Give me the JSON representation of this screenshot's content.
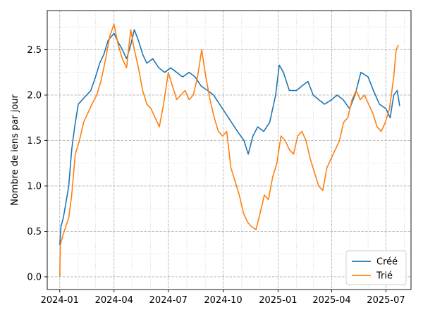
{
  "chart_data": {
    "type": "line",
    "title": "",
    "xlabel": "",
    "ylabel": "Nombre de iens par jour",
    "ylim": [
      -0.14,
      2.93
    ],
    "xlim": [
      "2023-12-11",
      "2025-08-12"
    ],
    "x_ticks": [
      {
        "date": "2024-01-01",
        "label": "2024-01"
      },
      {
        "date": "2024-04-01",
        "label": "2024-04"
      },
      {
        "date": "2024-07-01",
        "label": "2024-07"
      },
      {
        "date": "2024-10-01",
        "label": "2024-10"
      },
      {
        "date": "2025-01-01",
        "label": "2025-01"
      },
      {
        "date": "2025-04-01",
        "label": "2025-04"
      },
      {
        "date": "2025-07-01",
        "label": "2025-07"
      }
    ],
    "y_ticks": [
      {
        "value": 0.0,
        "label": "0.0"
      },
      {
        "value": 0.5,
        "label": "0.5"
      },
      {
        "value": 1.0,
        "label": "1.0"
      },
      {
        "value": 1.5,
        "label": "1.5"
      },
      {
        "value": 2.0,
        "label": "2.0"
      },
      {
        "value": 2.5,
        "label": "2.5"
      }
    ],
    "grid": {
      "major": "dashed",
      "minor": "dotted",
      "minor_x": "monthly"
    },
    "legend_position": "bottom-right",
    "series": [
      {
        "name": "Créé",
        "color": "#1f77b4",
        "points": [
          [
            "2024-01-01",
            0.35
          ],
          [
            "2024-01-03",
            0.55
          ],
          [
            "2024-01-07",
            0.65
          ],
          [
            "2024-01-11",
            0.8
          ],
          [
            "2024-01-16",
            1.0
          ],
          [
            "2024-01-21",
            1.4
          ],
          [
            "2024-01-26",
            1.65
          ],
          [
            "2024-02-01",
            1.9
          ],
          [
            "2024-02-08",
            1.95
          ],
          [
            "2024-02-15",
            2.0
          ],
          [
            "2024-02-22",
            2.05
          ],
          [
            "2024-03-01",
            2.2
          ],
          [
            "2024-03-08",
            2.35
          ],
          [
            "2024-03-15",
            2.45
          ],
          [
            "2024-03-22",
            2.6
          ],
          [
            "2024-04-01",
            2.68
          ],
          [
            "2024-04-08",
            2.58
          ],
          [
            "2024-04-15",
            2.5
          ],
          [
            "2024-04-22",
            2.4
          ],
          [
            "2024-04-29",
            2.55
          ],
          [
            "2024-05-05",
            2.72
          ],
          [
            "2024-05-12",
            2.6
          ],
          [
            "2024-05-19",
            2.45
          ],
          [
            "2024-05-26",
            2.35
          ],
          [
            "2024-06-05",
            2.4
          ],
          [
            "2024-06-15",
            2.3
          ],
          [
            "2024-06-25",
            2.25
          ],
          [
            "2024-07-05",
            2.3
          ],
          [
            "2024-07-15",
            2.25
          ],
          [
            "2024-07-25",
            2.2
          ],
          [
            "2024-08-05",
            2.25
          ],
          [
            "2024-08-15",
            2.2
          ],
          [
            "2024-08-25",
            2.1
          ],
          [
            "2024-09-05",
            2.05
          ],
          [
            "2024-09-15",
            2.0
          ],
          [
            "2024-09-25",
            1.9
          ],
          [
            "2024-10-05",
            1.8
          ],
          [
            "2024-10-15",
            1.7
          ],
          [
            "2024-10-25",
            1.6
          ],
          [
            "2024-11-05",
            1.5
          ],
          [
            "2024-11-12",
            1.35
          ],
          [
            "2024-11-20",
            1.55
          ],
          [
            "2024-11-28",
            1.65
          ],
          [
            "2024-12-08",
            1.6
          ],
          [
            "2024-12-18",
            1.7
          ],
          [
            "2024-12-28",
            2.0
          ],
          [
            "2025-01-03",
            2.33
          ],
          [
            "2025-01-10",
            2.25
          ],
          [
            "2025-01-20",
            2.05
          ],
          [
            "2025-02-01",
            2.05
          ],
          [
            "2025-02-10",
            2.1
          ],
          [
            "2025-02-20",
            2.15
          ],
          [
            "2025-03-01",
            2.0
          ],
          [
            "2025-03-10",
            1.95
          ],
          [
            "2025-03-20",
            1.9
          ],
          [
            "2025-04-01",
            1.95
          ],
          [
            "2025-04-10",
            2.0
          ],
          [
            "2025-04-20",
            1.95
          ],
          [
            "2025-05-01",
            1.85
          ],
          [
            "2025-05-10",
            2.0
          ],
          [
            "2025-05-20",
            2.25
          ],
          [
            "2025-06-01",
            2.2
          ],
          [
            "2025-06-10",
            2.05
          ],
          [
            "2025-06-20",
            1.9
          ],
          [
            "2025-07-01",
            1.85
          ],
          [
            "2025-07-08",
            1.75
          ],
          [
            "2025-07-14",
            2.0
          ],
          [
            "2025-07-20",
            2.05
          ],
          [
            "2025-07-24",
            1.88
          ]
        ]
      },
      {
        "name": "Trié",
        "color": "#ff7f0e",
        "points": [
          [
            "2024-01-01",
            0.0
          ],
          [
            "2024-01-02",
            0.35
          ],
          [
            "2024-01-06",
            0.45
          ],
          [
            "2024-01-11",
            0.55
          ],
          [
            "2024-01-16",
            0.65
          ],
          [
            "2024-01-21",
            0.9
          ],
          [
            "2024-01-27",
            1.35
          ],
          [
            "2024-02-03",
            1.5
          ],
          [
            "2024-02-10",
            1.7
          ],
          [
            "2024-02-17",
            1.8
          ],
          [
            "2024-02-24",
            1.9
          ],
          [
            "2024-03-03",
            2.0
          ],
          [
            "2024-03-10",
            2.15
          ],
          [
            "2024-03-18",
            2.4
          ],
          [
            "2024-03-25",
            2.65
          ],
          [
            "2024-04-01",
            2.78
          ],
          [
            "2024-04-08",
            2.55
          ],
          [
            "2024-04-15",
            2.4
          ],
          [
            "2024-04-22",
            2.3
          ],
          [
            "2024-04-29",
            2.72
          ],
          [
            "2024-05-05",
            2.5
          ],
          [
            "2024-05-12",
            2.3
          ],
          [
            "2024-05-19",
            2.05
          ],
          [
            "2024-05-26",
            1.9
          ],
          [
            "2024-06-02",
            1.85
          ],
          [
            "2024-06-09",
            1.75
          ],
          [
            "2024-06-16",
            1.65
          ],
          [
            "2024-06-23",
            1.9
          ],
          [
            "2024-07-01",
            2.25
          ],
          [
            "2024-07-08",
            2.1
          ],
          [
            "2024-07-15",
            1.95
          ],
          [
            "2024-07-22",
            2.0
          ],
          [
            "2024-07-29",
            2.05
          ],
          [
            "2024-08-05",
            1.95
          ],
          [
            "2024-08-12",
            2.0
          ],
          [
            "2024-08-19",
            2.2
          ],
          [
            "2024-08-26",
            2.5
          ],
          [
            "2024-09-02",
            2.2
          ],
          [
            "2024-09-09",
            1.95
          ],
          [
            "2024-09-16",
            1.75
          ],
          [
            "2024-09-23",
            1.6
          ],
          [
            "2024-09-30",
            1.55
          ],
          [
            "2024-10-07",
            1.6
          ],
          [
            "2024-10-14",
            1.2
          ],
          [
            "2024-10-21",
            1.05
          ],
          [
            "2024-10-28",
            0.9
          ],
          [
            "2024-11-04",
            0.7
          ],
          [
            "2024-11-11",
            0.6
          ],
          [
            "2024-11-18",
            0.55
          ],
          [
            "2024-11-25",
            0.52
          ],
          [
            "2024-12-02",
            0.7
          ],
          [
            "2024-12-09",
            0.9
          ],
          [
            "2024-12-16",
            0.85
          ],
          [
            "2024-12-23",
            1.1
          ],
          [
            "2024-12-30",
            1.25
          ],
          [
            "2025-01-06",
            1.55
          ],
          [
            "2025-01-13",
            1.5
          ],
          [
            "2025-01-20",
            1.4
          ],
          [
            "2025-01-27",
            1.35
          ],
          [
            "2025-02-03",
            1.55
          ],
          [
            "2025-02-10",
            1.6
          ],
          [
            "2025-02-17",
            1.5
          ],
          [
            "2025-02-24",
            1.3
          ],
          [
            "2025-03-03",
            1.15
          ],
          [
            "2025-03-10",
            1.0
          ],
          [
            "2025-03-17",
            0.95
          ],
          [
            "2025-03-24",
            1.2
          ],
          [
            "2025-03-31",
            1.3
          ],
          [
            "2025-04-07",
            1.4
          ],
          [
            "2025-04-14",
            1.5
          ],
          [
            "2025-04-21",
            1.7
          ],
          [
            "2025-04-28",
            1.75
          ],
          [
            "2025-05-05",
            1.95
          ],
          [
            "2025-05-12",
            2.05
          ],
          [
            "2025-05-19",
            1.95
          ],
          [
            "2025-05-26",
            2.0
          ],
          [
            "2025-06-02",
            1.9
          ],
          [
            "2025-06-09",
            1.8
          ],
          [
            "2025-06-16",
            1.65
          ],
          [
            "2025-06-23",
            1.6
          ],
          [
            "2025-06-30",
            1.7
          ],
          [
            "2025-07-07",
            1.85
          ],
          [
            "2025-07-14",
            2.2
          ],
          [
            "2025-07-18",
            2.5
          ],
          [
            "2025-07-22",
            2.55
          ]
        ]
      }
    ]
  }
}
